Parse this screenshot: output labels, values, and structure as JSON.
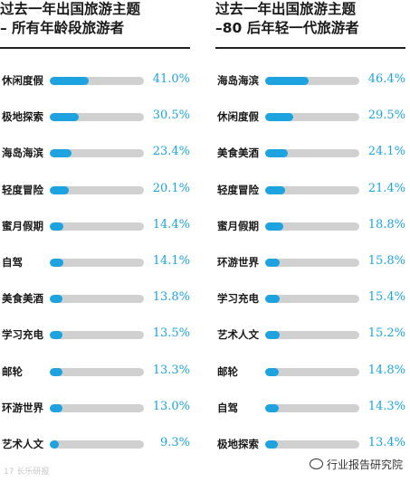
{
  "chart_data": [
    {
      "type": "bar",
      "title": [
        "过去一年出国旅游主题",
        "– 所有年龄段旅游者"
      ],
      "categories": [
        "休闲度假",
        "极地探索",
        "海岛海滨",
        "轻度冒险",
        "蜜月假期",
        "自驾",
        "美食美酒",
        "学习充电",
        "邮轮",
        "环游世界",
        "艺术人文"
      ],
      "values": [
        41.0,
        30.5,
        23.4,
        20.1,
        14.4,
        14.1,
        13.8,
        13.5,
        13.3,
        13.0,
        9.3
      ],
      "value_labels": [
        "41.0%",
        "30.5%",
        "23.4%",
        "20.1%",
        "14.4%",
        "14.1%",
        "13.8%",
        "13.5%",
        "13.3%",
        "13.0%",
        "9.3%"
      ],
      "xlim": [
        0,
        100
      ],
      "color": "#1ca3e0",
      "track_color": "#d0d0d0"
    },
    {
      "type": "bar",
      "title": [
        "过去一年出国旅游主题",
        "–80 后年轻一代旅游者"
      ],
      "categories": [
        "海岛海滨",
        "休闲度假",
        "美食美酒",
        "轻度冒险",
        "蜜月假期",
        "环游世界",
        "学习充电",
        "艺术人文",
        "邮轮",
        "自驾",
        "极地探索"
      ],
      "values": [
        46.4,
        29.5,
        24.1,
        21.4,
        18.8,
        15.8,
        15.4,
        15.2,
        14.8,
        14.3,
        13.4
      ],
      "value_labels": [
        "46.4%",
        "29.5%",
        "24.1%",
        "21.4%",
        "18.8%",
        "15.8%",
        "15.4%",
        "15.2%",
        "14.8%",
        "14.3%",
        "13.4%"
      ],
      "xlim": [
        0,
        100
      ],
      "color": "#1ca3e0",
      "track_color": "#d0d0d0"
    }
  ],
  "watermarks": {
    "left": "17 长乐研报",
    "right": "行业报告研究院",
    "right_icon": "wechat-icon"
  }
}
